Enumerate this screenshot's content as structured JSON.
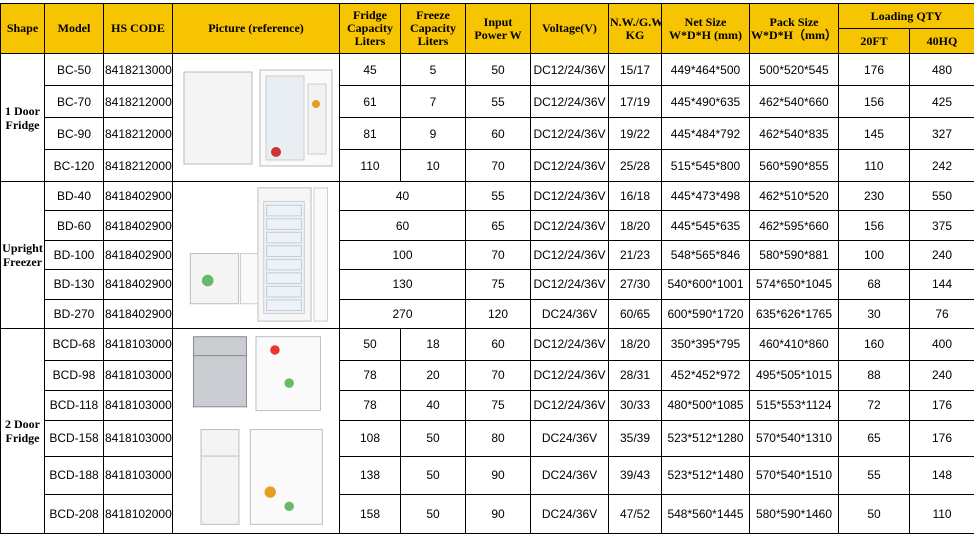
{
  "header": {
    "columns": [
      "Shape",
      "Model",
      "HS CODE",
      "Picture (reference)",
      "Fridge Capacity Liters",
      "Freeze Capacity Liters",
      "Input Power W",
      "Voltage(V)",
      "N.W./G.W. KG",
      "Net Size W*D*H (mm)",
      "Pack Size W*D*H（mm）",
      "Loading QTY"
    ],
    "loading": [
      "20FT",
      "40HQ"
    ]
  },
  "groups": [
    {
      "shape": "1 Door Fridge",
      "rows": [
        [
          "BC-50",
          "8418213000",
          "45",
          "5",
          "50",
          "DC12/24/36V",
          "15/17",
          "449*464*500",
          "500*520*545",
          "176",
          "480"
        ],
        [
          "BC-70",
          "8418212000",
          "61",
          "7",
          "55",
          "DC12/24/36V",
          "17/19",
          "445*490*635",
          "462*540*660",
          "156",
          "425"
        ],
        [
          "BC-90",
          "8418212000",
          "81",
          "9",
          "60",
          "DC12/24/36V",
          "19/22",
          "445*484*792",
          "462*540*835",
          "145",
          "327"
        ],
        [
          "BC-120",
          "8418212000",
          "110",
          "10",
          "70",
          "DC12/24/36V",
          "25/28",
          "515*545*800",
          "560*590*855",
          "110",
          "242"
        ]
      ]
    },
    {
      "shape": "Upright Freezer",
      "rows": [
        [
          "BD-40",
          "8418402900",
          "40",
          "55",
          "DC12/24/36V",
          "16/18",
          "445*473*498",
          "462*510*520",
          "230",
          "550"
        ],
        [
          "BD-60",
          "8418402900",
          "60",
          "65",
          "DC12/24/36V",
          "18/20",
          "445*545*635",
          "462*595*660",
          "156",
          "375"
        ],
        [
          "BD-100",
          "8418402900",
          "100",
          "70",
          "DC12/24/36V",
          "21/23",
          "548*565*846",
          "580*590*881",
          "100",
          "240"
        ],
        [
          "BD-130",
          "8418402900",
          "130",
          "75",
          "DC12/24/36V",
          "27/30",
          "540*600*1001",
          "574*650*1045",
          "68",
          "144"
        ],
        [
          "BD-270",
          "8418402900",
          "270",
          "120",
          "DC24/36V",
          "60/65",
          "600*590*1720",
          "635*626*1765",
          "30",
          "76"
        ]
      ]
    },
    {
      "shape": "2 Door Fridge",
      "rows": [
        [
          "BCD-68",
          "8418103000",
          "50",
          "18",
          "60",
          "DC12/24/36V",
          "18/20",
          "350*395*795",
          "460*410*860",
          "160",
          "400"
        ],
        [
          "BCD-98",
          "8418103000",
          "78",
          "20",
          "70",
          "DC12/24/36V",
          "28/31",
          "452*452*972",
          "495*505*1015",
          "88",
          "240"
        ],
        [
          "BCD-118",
          "8418103000",
          "78",
          "40",
          "75",
          "DC12/24/36V",
          "30/33",
          "480*500*1085",
          "515*553*1124",
          "72",
          "176"
        ],
        [
          "BCD-158",
          "8418103000",
          "108",
          "50",
          "80",
          "DC24/36V",
          "35/39",
          "523*512*1280",
          "570*540*1310",
          "65",
          "176"
        ],
        [
          "BCD-188",
          "8418103000",
          "138",
          "50",
          "90",
          "DC24/36V",
          "39/43",
          "523*512*1480",
          "570*540*1510",
          "55",
          "148"
        ],
        [
          "BCD-208",
          "8418102000",
          "158",
          "50",
          "90",
          "DC24/36V",
          "47/52",
          "548*560*1445",
          "580*590*1460",
          "50",
          "110"
        ]
      ]
    }
  ]
}
